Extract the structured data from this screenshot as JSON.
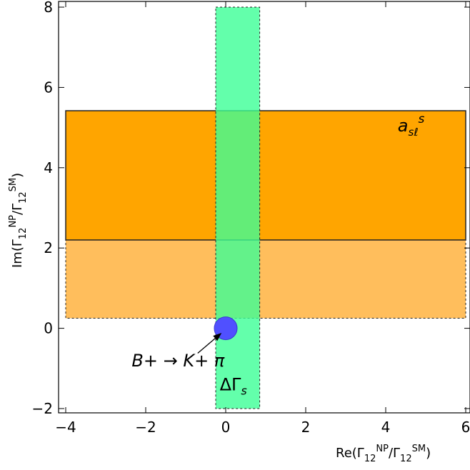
{
  "chart_data": {
    "type": "area",
    "xlabel": "Re(Γ12NP/Γ12SM)",
    "ylabel": "Im(Γ12NP/Γ12SM)",
    "xlim": [
      -4,
      6
    ],
    "ylim": [
      -2,
      8
    ],
    "x_ticks": [
      "−4",
      "−2",
      "0",
      "2",
      "4",
      "6"
    ],
    "y_ticks": [
      "−2",
      "0",
      "2",
      "4",
      "6",
      "8"
    ],
    "grid": false,
    "regions": [
      {
        "label": "a_sℓ^s (light band)",
        "x": [
          -4.0,
          6.0
        ],
        "y": [
          0.25,
          2.2
        ],
        "color": "#ffbe5c",
        "border": "dashed"
      },
      {
        "label": "a_sℓ^s",
        "x": [
          -4.0,
          6.0
        ],
        "y": [
          2.2,
          5.42
        ],
        "color": "#ffa500",
        "border": "solid"
      },
      {
        "label": "ΔΓs",
        "x": [
          -0.25,
          0.85
        ],
        "y": [
          -2.0,
          8.0
        ],
        "color": "#3cff96",
        "opacity": 0.8,
        "border": "dashed"
      }
    ],
    "points": [
      {
        "label": "B+ → K+ π",
        "x": 0.0,
        "y": 0.0,
        "color": "#5050ff"
      }
    ],
    "annotations": {
      "asl": {
        "base": "a",
        "sub": "sℓ",
        "sup": "s",
        "x": 4.3,
        "y": 4.9
      },
      "dgs": {
        "text": "ΔΓ",
        "sub": "s",
        "x": -0.15,
        "y": -1.55
      },
      "bkpi": {
        "text": "B+ → K+ π",
        "text_x": -2.35,
        "text_y": -0.95,
        "arrow_from": [
          -0.7,
          -0.62
        ],
        "arrow_to": [
          -0.12,
          -0.13
        ]
      }
    }
  }
}
